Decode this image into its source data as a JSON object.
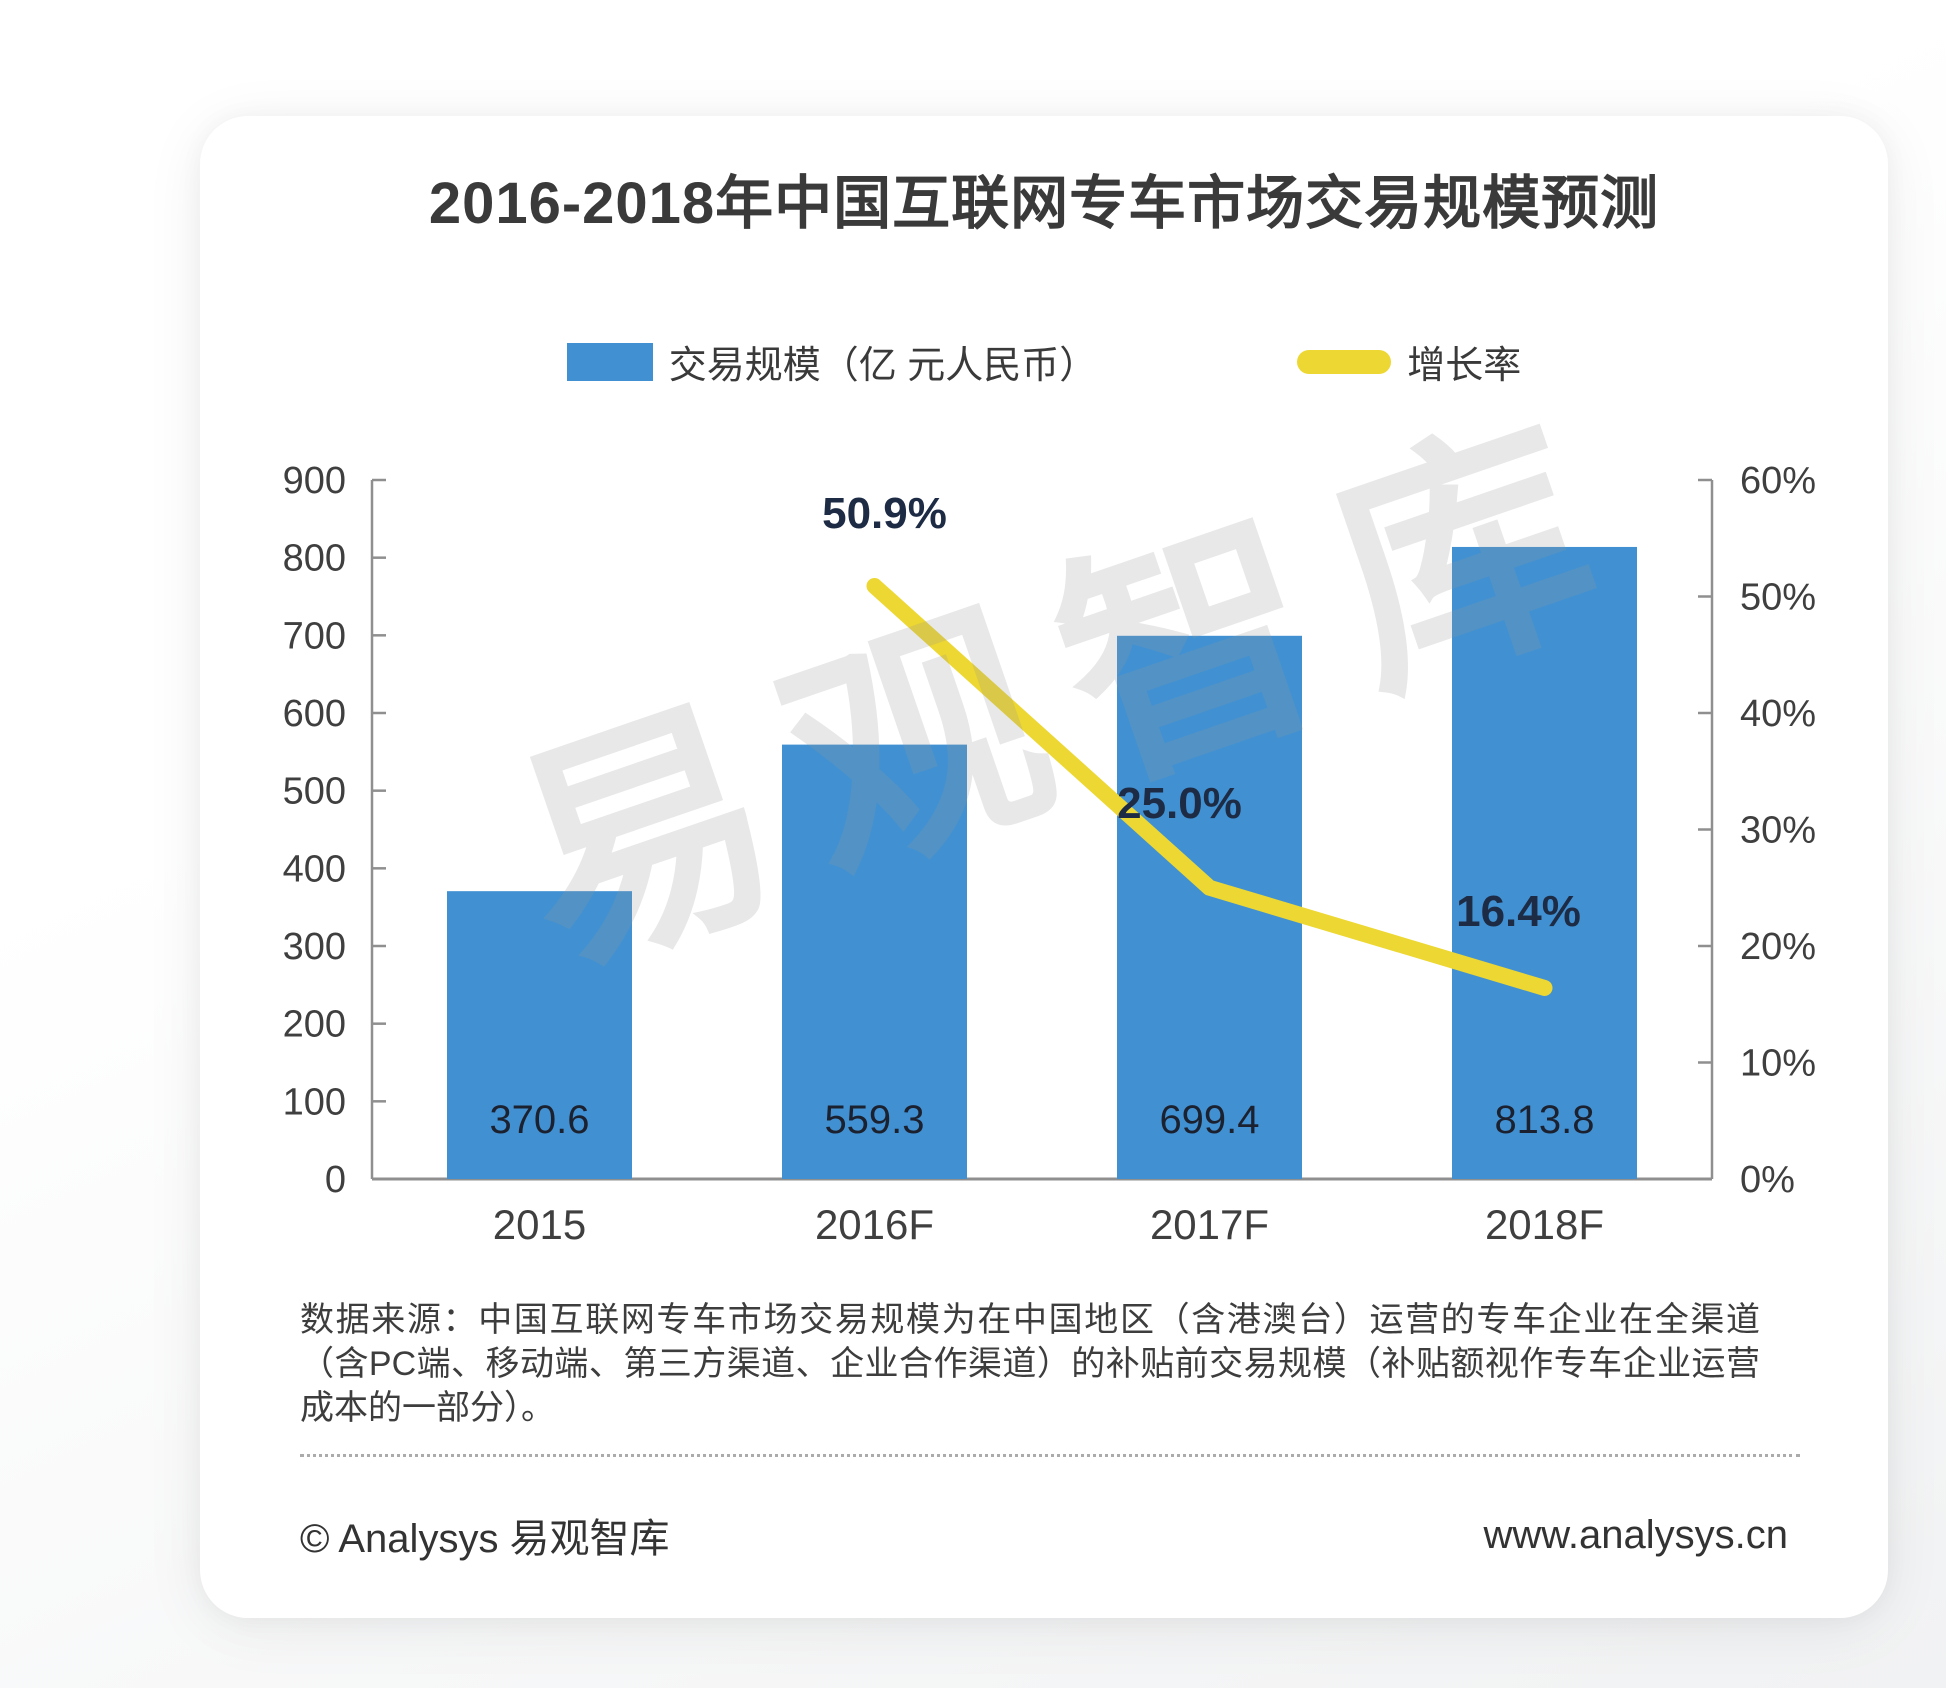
{
  "title": "2016-2018年中国互联网专车市场交易规模预测",
  "legend": [
    {
      "label": "交易规模（亿 元人民币）",
      "color": "#4191d2",
      "type": "bar"
    },
    {
      "label": "增长率",
      "color": "#edd732",
      "type": "line"
    }
  ],
  "watermark": "易观智库",
  "chart_data": {
    "type": "bar",
    "title": "2016-2018年中国互联网专车市场交易规模预测",
    "categories": [
      "2015",
      "2016F",
      "2017F",
      "2018F"
    ],
    "series": [
      {
        "name": "交易规模（亿 元人民币）",
        "type": "bar",
        "axis": "left",
        "color": "#4191d2",
        "values": [
          370.6,
          559.3,
          699.4,
          813.8
        ],
        "data_labels": [
          "370.6",
          "559.3",
          "699.4",
          "813.8"
        ]
      },
      {
        "name": "增长率",
        "type": "line",
        "axis": "right",
        "color": "#edd732",
        "values": [
          null,
          50.9,
          25.0,
          16.4
        ],
        "data_labels": [
          "",
          "50.9%",
          "25.0%",
          "16.4%"
        ]
      }
    ],
    "left_axis": {
      "min": 0,
      "max": 900,
      "step": 100,
      "tick_labels": [
        "0",
        "100",
        "200",
        "300",
        "400",
        "500",
        "600",
        "700",
        "800",
        "900"
      ]
    },
    "right_axis": {
      "min": 0,
      "max": 60,
      "step": 10,
      "tick_labels": [
        "0%",
        "10%",
        "20%",
        "30%",
        "40%",
        "50%",
        "60%"
      ]
    },
    "grid": false,
    "legend_position": "top",
    "colors": {
      "axis": "#8f8f8f",
      "tick_label": "#3f3f3f",
      "bar_value_label": "#1c2130",
      "line_value_label": "#1d2b45"
    }
  },
  "source_note": "数据来源：中国互联网专车市场交易规模为在中国地区（含港澳台）运营的专车企业在全渠道（含PC端、移动端、第三方渠道、企业合作渠道）的补贴前交易规模（补贴额视作专车企业运营成本的一部分）。",
  "footer": {
    "copyright": "© Analysys 易观智库",
    "website": "www.analysys.cn"
  }
}
